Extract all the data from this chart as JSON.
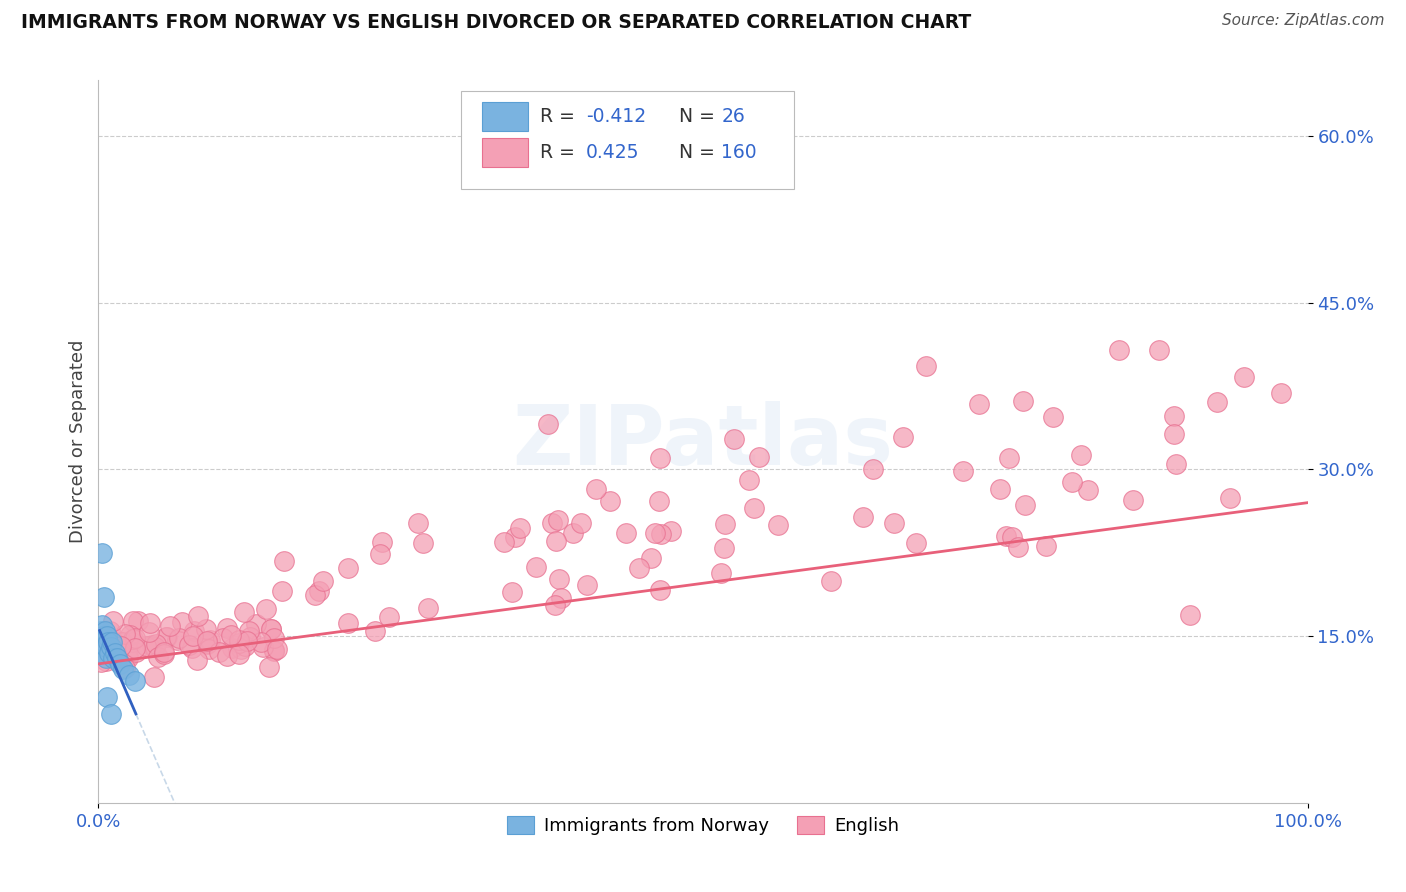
{
  "title": "IMMIGRANTS FROM NORWAY VS ENGLISH DIVORCED OR SEPARATED CORRELATION CHART",
  "source": "Source: ZipAtlas.com",
  "ylabel": "Divorced or Separated",
  "legend_label_blue": "Immigrants from Norway",
  "legend_label_pink": "English",
  "r_blue": -0.412,
  "n_blue": 26,
  "r_pink": 0.425,
  "n_pink": 160,
  "xlim": [
    0.0,
    100.0
  ],
  "ylim": [
    0.0,
    65.0
  ],
  "ytick_vals": [
    15,
    30,
    45,
    60
  ],
  "ytick_labels": [
    "15.0%",
    "30.0%",
    "45.0%",
    "60.0%"
  ],
  "watermark": "ZIPatlas",
  "blue_color": "#7ab3e0",
  "blue_edge": "#5a9fd4",
  "pink_color": "#f4a0b5",
  "pink_edge": "#e87090",
  "pink_line_color": "#e8607a",
  "blue_line_color": "#3060c0",
  "dashed_line_color": "#c8d8e8",
  "grid_color": "#cccccc",
  "tick_color": "#3366cc",
  "title_color": "#111111",
  "source_color": "#555555",
  "ylabel_color": "#444444"
}
